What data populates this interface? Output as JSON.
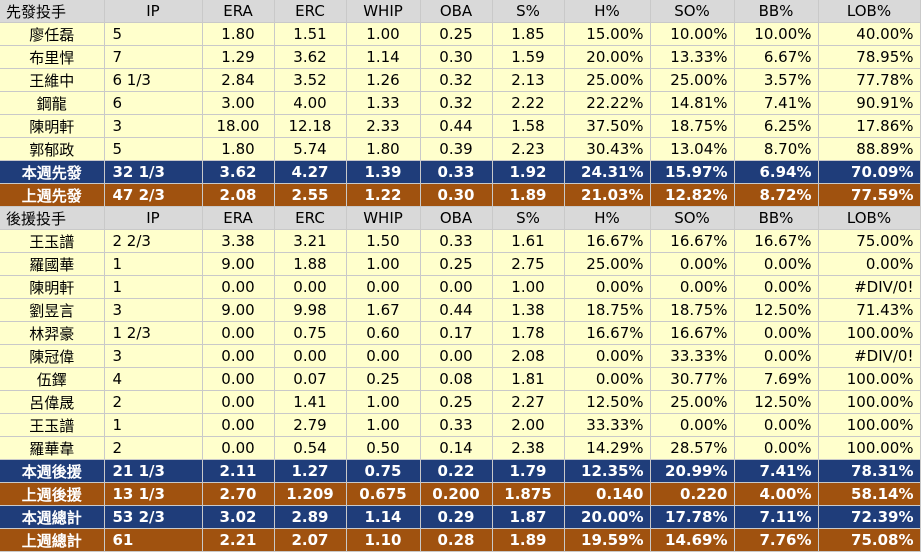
{
  "starters": {
    "headers": [
      "先發投手",
      "IP",
      "ERA",
      "ERC",
      "WHIP",
      "OBA",
      "S%",
      "H%",
      "SO%",
      "BB%",
      "LOB%"
    ],
    "rows": [
      [
        "廖任磊",
        "5",
        "1.80",
        "1.51",
        "1.00",
        "0.25",
        "1.85",
        "15.00%",
        "10.00%",
        "10.00%",
        "40.00%"
      ],
      [
        "布里悍",
        "7",
        "1.29",
        "3.62",
        "1.14",
        "0.30",
        "1.59",
        "20.00%",
        "13.33%",
        "6.67%",
        "78.95%"
      ],
      [
        "王維中",
        "6 1/3",
        "2.84",
        "3.52",
        "1.26",
        "0.32",
        "2.13",
        "25.00%",
        "25.00%",
        "3.57%",
        "77.78%"
      ],
      [
        "鋼龍",
        "6",
        "3.00",
        "4.00",
        "1.33",
        "0.32",
        "2.22",
        "22.22%",
        "14.81%",
        "7.41%",
        "90.91%"
      ],
      [
        "陳明軒",
        "3",
        "18.00",
        "12.18",
        "2.33",
        "0.44",
        "1.58",
        "37.50%",
        "18.75%",
        "6.25%",
        "17.86%"
      ],
      [
        "郭郁政",
        "5",
        "1.80",
        "5.74",
        "1.80",
        "0.39",
        "2.23",
        "30.43%",
        "13.04%",
        "8.70%",
        "88.89%"
      ]
    ],
    "this_week": [
      "本週先發",
      "32 1/3",
      "3.62",
      "4.27",
      "1.39",
      "0.33",
      "1.92",
      "24.31%",
      "15.97%",
      "6.94%",
      "70.09%"
    ],
    "last_week": [
      "上週先發",
      "47 2/3",
      "2.08",
      "2.55",
      "1.22",
      "0.30",
      "1.89",
      "21.03%",
      "12.82%",
      "8.72%",
      "77.59%"
    ]
  },
  "relievers": {
    "headers": [
      "後援投手",
      "IP",
      "ERA",
      "ERC",
      "WHIP",
      "OBA",
      "S%",
      "H%",
      "SO%",
      "BB%",
      "LOB%"
    ],
    "rows": [
      [
        "王玉譜",
        "2 2/3",
        "3.38",
        "3.21",
        "1.50",
        "0.33",
        "1.61",
        "16.67%",
        "16.67%",
        "16.67%",
        "75.00%"
      ],
      [
        "羅國華",
        "1",
        "9.00",
        "1.88",
        "1.00",
        "0.25",
        "2.75",
        "25.00%",
        "0.00%",
        "0.00%",
        "0.00%"
      ],
      [
        "陳明軒",
        "1",
        "0.00",
        "0.00",
        "0.00",
        "0.00",
        "1.00",
        "0.00%",
        "0.00%",
        "0.00%",
        "#DIV/0!"
      ],
      [
        "劉昱言",
        "3",
        "9.00",
        "9.98",
        "1.67",
        "0.44",
        "1.38",
        "18.75%",
        "18.75%",
        "12.50%",
        "71.43%"
      ],
      [
        "林羿豪",
        "1 2/3",
        "0.00",
        "0.75",
        "0.60",
        "0.17",
        "1.78",
        "16.67%",
        "16.67%",
        "0.00%",
        "100.00%"
      ],
      [
        "陳冠偉",
        "3",
        "0.00",
        "0.00",
        "0.00",
        "0.00",
        "2.08",
        "0.00%",
        "33.33%",
        "0.00%",
        "#DIV/0!"
      ],
      [
        "伍鐸",
        "4",
        "0.00",
        "0.07",
        "0.25",
        "0.08",
        "1.81",
        "0.00%",
        "30.77%",
        "7.69%",
        "100.00%"
      ],
      [
        "呂偉晟",
        "2",
        "0.00",
        "1.41",
        "1.00",
        "0.25",
        "2.27",
        "12.50%",
        "25.00%",
        "12.50%",
        "100.00%"
      ],
      [
        "王玉譜",
        "1",
        "0.00",
        "2.79",
        "1.00",
        "0.33",
        "2.00",
        "33.33%",
        "0.00%",
        "0.00%",
        "100.00%"
      ],
      [
        "羅華韋",
        "2",
        "0.00",
        "0.54",
        "0.50",
        "0.14",
        "2.38",
        "14.29%",
        "28.57%",
        "0.00%",
        "100.00%"
      ]
    ],
    "this_week": [
      "本週後援",
      "21 1/3",
      "2.11",
      "1.27",
      "0.75",
      "0.22",
      "1.79",
      "12.35%",
      "20.99%",
      "7.41%",
      "78.31%"
    ],
    "last_week": [
      "上週後援",
      "13 1/3",
      "2.70",
      "1.209",
      "0.675",
      "0.200",
      "1.875",
      "0.140",
      "0.220",
      "4.00%",
      "58.14%"
    ]
  },
  "totals": {
    "this_week": [
      "本週總計",
      "53 2/3",
      "3.02",
      "2.89",
      "1.14",
      "0.29",
      "1.87",
      "20.00%",
      "17.78%",
      "7.11%",
      "72.39%"
    ],
    "last_week": [
      "上週總計",
      "61",
      "2.21",
      "2.07",
      "1.10",
      "0.28",
      "1.89",
      "19.59%",
      "14.69%",
      "7.76%",
      "75.08%"
    ]
  },
  "colors": {
    "header_bg": "#d9d9d9",
    "row_bg": "#ffffcc",
    "this_week_bg": "#1f3d7a",
    "last_week_bg": "#a0520f"
  }
}
